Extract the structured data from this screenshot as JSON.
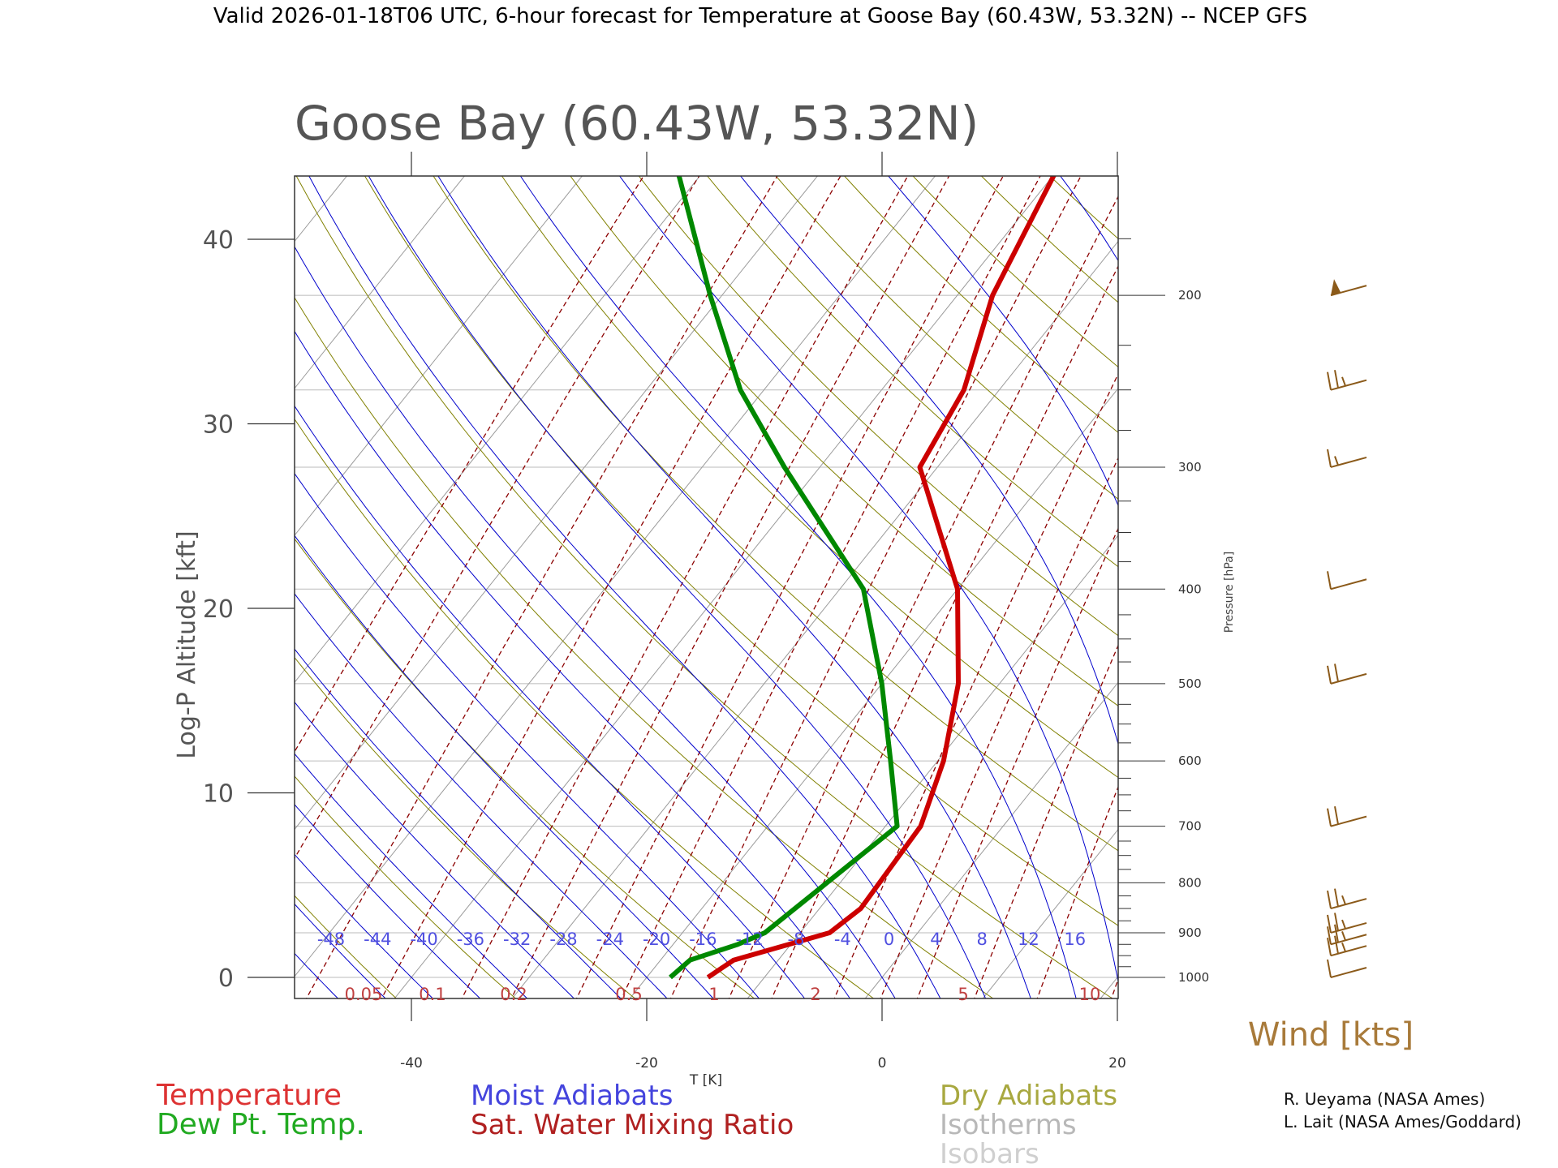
{
  "header": "Valid 2026-01-18T06 UTC, 6-hour forecast for Temperature at Goose Bay (60.43W, 53.32N) -- NCEP GFS",
  "chart_data": {
    "type": "line",
    "title": "Goose Bay (60.43W, 53.32N)",
    "xlabel": "T [K]",
    "ylabel": "Log-P Altitude [kft]",
    "y2label": "Pressure [hPa]",
    "x_ticks": [
      "-40",
      "-20",
      "0",
      "20"
    ],
    "y_ticks": [
      "0",
      "10",
      "20",
      "30",
      "40"
    ],
    "xlim": [
      -50,
      20
    ],
    "ylim_kft": [
      -1,
      43.5
    ],
    "pressure_ticks": [
      "200",
      "300",
      "400",
      "500",
      "600",
      "700",
      "800",
      "900",
      "1000"
    ],
    "series": [
      {
        "name": "Temperature",
        "color": "#cc0000",
        "points": [
          {
            "p": 1000,
            "t": -14.8
          },
          {
            "p": 960,
            "t": -13.8
          },
          {
            "p": 900,
            "t": -7.5
          },
          {
            "p": 850,
            "t": -6.5
          },
          {
            "p": 700,
            "t": -7.0
          },
          {
            "p": 600,
            "t": -9.5
          },
          {
            "p": 500,
            "t": -13.5
          },
          {
            "p": 400,
            "t": -20.0
          },
          {
            "p": 300,
            "t": -31.5
          },
          {
            "p": 250,
            "t": -33.0
          },
          {
            "p": 200,
            "t": -37.0
          },
          {
            "p": 150,
            "t": -40.0
          }
        ]
      },
      {
        "name": "Dew Pt. Temp.",
        "color": "#008800",
        "points": [
          {
            "p": 1000,
            "t": -18.0
          },
          {
            "p": 960,
            "t": -17.5
          },
          {
            "p": 925,
            "t": -14.5
          },
          {
            "p": 900,
            "t": -13.0
          },
          {
            "p": 700,
            "t": -9.0
          },
          {
            "p": 600,
            "t": -14.0
          },
          {
            "p": 500,
            "t": -20.0
          },
          {
            "p": 400,
            "t": -28.0
          },
          {
            "p": 300,
            "t": -43.0
          },
          {
            "p": 250,
            "t": -52.0
          },
          {
            "p": 200,
            "t": -61.0
          },
          {
            "p": 150,
            "t": -72.0
          }
        ]
      }
    ],
    "moist_adiabat_labels": [
      "-48",
      "-44",
      "-40",
      "-36",
      "-32",
      "-28",
      "-24",
      "-20",
      "-16",
      "-12",
      "-8",
      "-4",
      "0",
      "4",
      "8",
      "12",
      "16"
    ],
    "mixing_ratio_labels": [
      "0.05",
      "0.1",
      "0.2",
      "0.5",
      "1",
      "2",
      "5",
      "10"
    ],
    "wind_barbs_kts": [
      {
        "p": 1000,
        "speed": 10
      },
      {
        "p": 950,
        "speed": 25
      },
      {
        "p": 925,
        "speed": 25
      },
      {
        "p": 900,
        "speed": 25
      },
      {
        "p": 850,
        "speed": 25
      },
      {
        "p": 700,
        "speed": 20
      },
      {
        "p": 500,
        "speed": 20
      },
      {
        "p": 400,
        "speed": 10
      },
      {
        "p": 300,
        "speed": 15
      },
      {
        "p": 250,
        "speed": 25
      },
      {
        "p": 200,
        "speed": 55
      }
    ],
    "wind_label": "Wind [kts]"
  },
  "legend": {
    "temperature": "Temperature",
    "dewpoint": "Dew Pt. Temp.",
    "moist": "Moist Adiabats",
    "mixing": "Sat. Water Mixing Ratio",
    "dry": "Dry Adiabats",
    "isotherms": "Isotherms",
    "isobars": "Isobars"
  },
  "credits": [
    "R. Ueyama (NASA Ames)",
    "L. Lait (NASA Ames/Goddard)"
  ],
  "colors": {
    "temperature": "#cc0000",
    "dewpoint": "#008800",
    "moist": "#0000cc",
    "mixing": "#8b0000",
    "dry": "#808000",
    "isotherm": "#999999",
    "isobar": "#bbbbbb",
    "wind": "#8b5a1a"
  }
}
